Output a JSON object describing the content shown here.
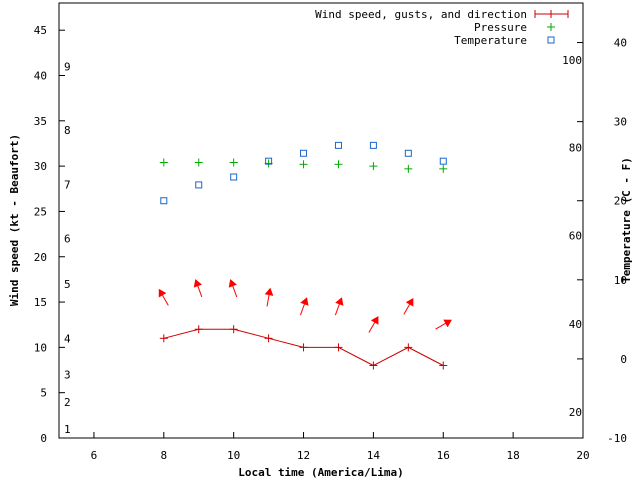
{
  "chart_data": {
    "type": "line",
    "xlabel": "Local time (America/Lima)",
    "ylabel_left": "Wind speed (kt - Beaufort)",
    "ylabel_right": "Temperature (C - F)",
    "x_range": [
      5,
      20
    ],
    "x_ticks": [
      6,
      8,
      10,
      12,
      14,
      16,
      18,
      20
    ],
    "y_left_range": [
      0,
      48
    ],
    "y_left_ticks": [
      0,
      5,
      10,
      15,
      20,
      25,
      30,
      35,
      40,
      45
    ],
    "y_right_range": [
      -10,
      45
    ],
    "y_right_ticks": [
      -10,
      0,
      10,
      20,
      30,
      40
    ],
    "beaufort_labels": [
      {
        "label": "1",
        "kt": 1
      },
      {
        "label": "2",
        "kt": 4
      },
      {
        "label": "3",
        "kt": 7
      },
      {
        "label": "4",
        "kt": 11
      },
      {
        "label": "5",
        "kt": 17
      },
      {
        "label": "6",
        "kt": 22
      },
      {
        "label": "7",
        "kt": 28
      },
      {
        "label": "8",
        "kt": 34
      },
      {
        "label": "9",
        "kt": 41
      }
    ],
    "fahrenheit_labels": [
      {
        "label": "20",
        "celsius": -6.7
      },
      {
        "label": "40",
        "celsius": 4.4
      },
      {
        "label": "60",
        "celsius": 15.6
      },
      {
        "label": "80",
        "celsius": 26.7
      },
      {
        "label": "100",
        "celsius": 37.8
      }
    ],
    "legend": {
      "placement": "top-right",
      "entries": [
        "Wind speed, gusts, and direction",
        "Pressure",
        "Temperature"
      ]
    },
    "colors": {
      "wind": "#cc0000",
      "pressure": "#00aa00",
      "temperature": "#1a66cc",
      "arrow": "#ff0000"
    },
    "series": [
      {
        "name": "Wind speed, gusts, and direction",
        "axis": "left",
        "x": [
          8,
          9,
          10,
          11,
          12,
          13,
          14,
          15,
          16
        ],
        "values": [
          11,
          12,
          12,
          11,
          10,
          10,
          8,
          10,
          8
        ]
      },
      {
        "name": "Pressure",
        "axis": "left",
        "x": [
          8,
          9,
          10,
          11,
          12,
          13,
          14,
          15,
          16
        ],
        "values": [
          30.4,
          30.4,
          30.4,
          30.3,
          30.2,
          30.2,
          30.0,
          29.7,
          29.7
        ]
      },
      {
        "name": "Temperature",
        "axis": "right",
        "x": [
          8,
          9,
          10,
          11,
          12,
          13,
          14,
          15,
          16
        ],
        "values": [
          20,
          22,
          23,
          25,
          26,
          27,
          27,
          26,
          25
        ]
      },
      {
        "name": "Wind direction arrows",
        "axis": "left",
        "x": [
          8,
          9,
          10,
          11,
          12,
          13,
          14,
          15,
          16
        ],
        "values": [
          15.5,
          16.5,
          16.5,
          15.5,
          14.5,
          14.5,
          12.5,
          14.5,
          12.5
        ],
        "direction_deg": [
          150,
          160,
          160,
          190,
          200,
          200,
          210,
          210,
          240
        ]
      }
    ]
  }
}
